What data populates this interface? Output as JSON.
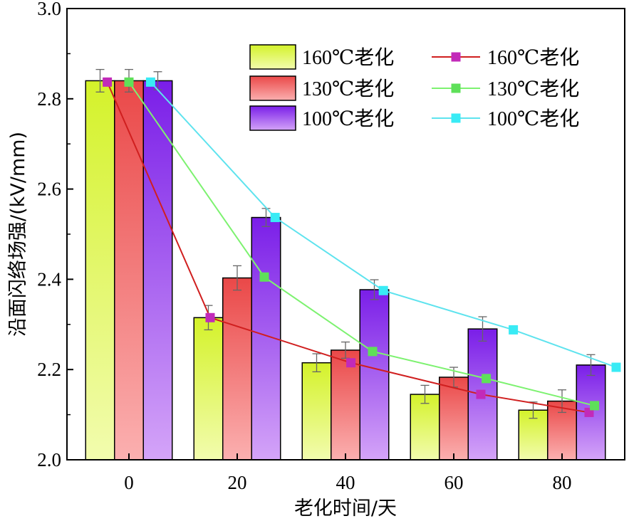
{
  "chart_data": {
    "type": "bar",
    "title": "",
    "xlabel": "老化时间/天",
    "ylabel": "沿面闪络场强/(kV/mm)",
    "ylim": [
      2.0,
      3.0
    ],
    "yticks": [
      "2.0",
      "2.2",
      "2.4",
      "2.6",
      "2.8",
      "3.0"
    ],
    "categories": [
      "0",
      "20",
      "40",
      "60",
      "80"
    ],
    "grid": false,
    "legend_position": "top-right",
    "bar_series": [
      {
        "name": "160℃老化",
        "values": [
          2.84,
          2.315,
          2.215,
          2.145,
          2.11
        ],
        "errors": [
          0.025,
          0.027,
          0.02,
          0.02,
          0.018
        ],
        "color_top": "#d4f22a",
        "color_bottom": "#f2fcae"
      },
      {
        "name": "130℃老化",
        "values": [
          2.84,
          2.403,
          2.243,
          2.183,
          2.13
        ],
        "errors": [
          0.025,
          0.027,
          0.018,
          0.022,
          0.025
        ],
        "color_top": "#ea4848",
        "color_bottom": "#fbb0b0"
      },
      {
        "name": "100℃老化",
        "values": [
          2.84,
          2.537,
          2.377,
          2.29,
          2.21
        ],
        "errors": [
          0.02,
          0.02,
          0.022,
          0.027,
          0.023
        ],
        "color_top": "#7a1ee8",
        "color_bottom": "#d4a4f8"
      }
    ],
    "line_series": [
      {
        "name": "160℃老化",
        "x": [
          -4,
          15,
          41,
          65,
          85
        ],
        "values": [
          2.837,
          2.315,
          2.215,
          2.145,
          2.105
        ],
        "color": "#d01f1f",
        "marker_color": "#c22ab9"
      },
      {
        "name": "130℃老化",
        "x": [
          0,
          25,
          45,
          66,
          86
        ],
        "values": [
          2.837,
          2.405,
          2.24,
          2.18,
          2.12
        ],
        "color": "#7df270",
        "marker_color": "#5ee059"
      },
      {
        "name": "100℃老化",
        "x": [
          4,
          27,
          47,
          71,
          90
        ],
        "values": [
          2.837,
          2.537,
          2.375,
          2.288,
          2.205
        ],
        "color": "#5ee3ee",
        "marker_color": "#39ebf5"
      }
    ]
  }
}
